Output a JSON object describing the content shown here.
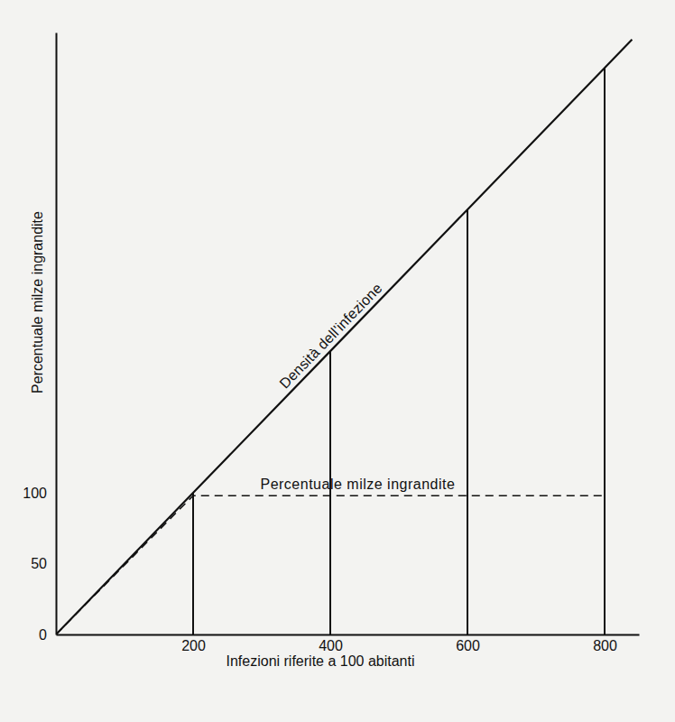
{
  "chart_data": {
    "type": "line",
    "x_label": "Infezioni riferite a 100 abitanti",
    "y_label": "Percentuale milze ingrandite",
    "xlim": [
      0,
      850
    ],
    "ylim": [
      0,
      425
    ],
    "xticks": [
      200,
      400,
      600,
      800
    ],
    "yticks": [
      0,
      50,
      100
    ],
    "grid": false,
    "series": [
      {
        "name": "Densità dell'infezione",
        "type": "line",
        "line_style": "solid",
        "color": "#111111",
        "x": [
          0,
          200,
          400,
          600,
          800,
          840
        ],
        "values": [
          0,
          100,
          200,
          300,
          400,
          420
        ]
      },
      {
        "name": "Percentuale milze ingrandite",
        "type": "line",
        "line_style": "dashed",
        "color": "#111111",
        "x": [
          0,
          200,
          800
        ],
        "values": [
          0,
          98,
          98
        ]
      },
      {
        "type": "stem",
        "line_style": "solid",
        "color": "#111111",
        "x": [
          200,
          400,
          600,
          800
        ],
        "values": [
          100,
          200,
          300,
          400
        ]
      }
    ]
  }
}
